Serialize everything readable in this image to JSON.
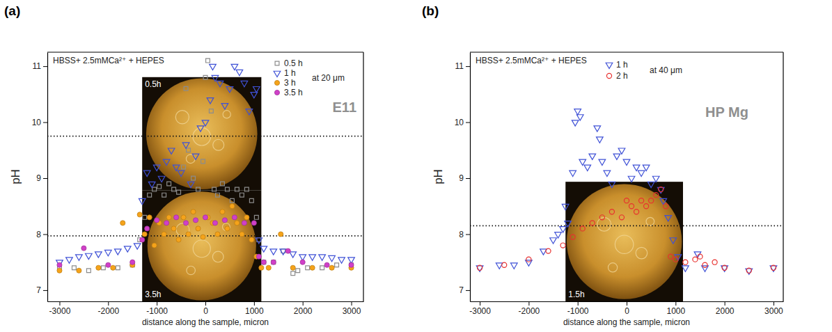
{
  "chart_data": [
    {
      "type": "scatter",
      "panel_label": "(a)",
      "subtitle": "HBSS+ 2.5mMCa²⁺ + HEPES",
      "x_label": "distance along the sample, micron",
      "y_label": "pH",
      "xlim": [
        -3250,
        3250
      ],
      "ylim": [
        6.8,
        11.25
      ],
      "xticks": [
        -3000,
        -2000,
        -1000,
        0,
        1000,
        2000,
        3000
      ],
      "yticks": [
        7,
        8,
        9,
        10,
        11
      ],
      "reference_lines": [
        9.75,
        7.97
      ],
      "annotations": [
        "at 20 μm",
        "E11"
      ],
      "inset_labels": [
        "0.5h",
        "3.5h"
      ],
      "legend": "upper right",
      "series": [
        {
          "name": "0.5 h",
          "color": "#8c8c8c",
          "marker": "square-open",
          "x": [
            -3000,
            -2700,
            -2400,
            -2100,
            -1800,
            -1500,
            -1350,
            -1250,
            -1150,
            -1050,
            -950,
            -850,
            -750,
            -650,
            -550,
            -450,
            -400,
            -350,
            -250,
            -150,
            -50,
            0,
            50,
            120,
            180,
            250,
            350,
            450,
            550,
            650,
            750,
            850,
            950,
            1050,
            1100,
            1200,
            1400,
            1600,
            1800,
            1900,
            2100,
            2400,
            2700,
            3000
          ],
          "values": [
            7.4,
            7.4,
            7.35,
            7.4,
            7.4,
            7.45,
            7.9,
            8.3,
            8.7,
            8.8,
            8.85,
            8.7,
            8.9,
            8.8,
            8.75,
            9.2,
            10.6,
            9.5,
            9.0,
            8.8,
            9.3,
            10.8,
            11.1,
            10.2,
            8.8,
            8.7,
            8.9,
            8.8,
            8.6,
            8.8,
            8.7,
            8.8,
            8.6,
            8.3,
            7.9,
            7.5,
            7.5,
            7.7,
            7.3,
            7.35,
            7.4,
            7.4,
            7.45,
            7.45
          ]
        },
        {
          "name": "1 h",
          "color": "#3f51d6",
          "marker": "triangle-down-open",
          "x": [
            -3000,
            -2800,
            -2600,
            -2400,
            -2200,
            -2000,
            -1800,
            -1600,
            -1400,
            -1300,
            -1200,
            -1100,
            -1000,
            -900,
            -800,
            -700,
            -600,
            -500,
            -400,
            -300,
            -200,
            -100,
            0,
            100,
            150,
            200,
            300,
            400,
            500,
            600,
            700,
            800,
            900,
            1000,
            1050,
            1100,
            1200,
            1400,
            1600,
            1800,
            2000,
            2200,
            2400,
            2600,
            2800,
            3000
          ],
          "values": [
            7.5,
            7.55,
            7.6,
            7.62,
            7.65,
            7.68,
            7.7,
            7.75,
            7.8,
            8.6,
            9.1,
            8.9,
            9.2,
            9.0,
            9.3,
            9.5,
            9.2,
            9.1,
            9.6,
            8.9,
            9.4,
            9.9,
            10.0,
            10.4,
            11.0,
            10.8,
            10.7,
            10.3,
            10.6,
            11.0,
            10.9,
            10.7,
            10.2,
            10.5,
            10.6,
            7.9,
            7.75,
            7.7,
            7.7,
            7.65,
            7.6,
            7.6,
            7.6,
            7.58,
            7.55,
            7.55
          ]
        },
        {
          "name": "3 h",
          "color": "#f5a31a",
          "marker": "circle",
          "x": [
            -3000,
            -2600,
            -2200,
            -1900,
            -1700,
            -1500,
            -1350,
            -1250,
            -1150,
            -1050,
            -950,
            -850,
            -750,
            -650,
            -550,
            -450,
            -350,
            -250,
            -150,
            -50,
            50,
            150,
            250,
            350,
            450,
            550,
            650,
            750,
            850,
            950,
            1050,
            1150,
            1300,
            1550,
            1800,
            2200,
            2600,
            3000
          ],
          "values": [
            7.35,
            7.35,
            7.4,
            7.4,
            8.2,
            7.45,
            8.35,
            8.0,
            8.3,
            7.8,
            8.2,
            8.0,
            8.3,
            8.1,
            7.9,
            8.3,
            8.0,
            8.4,
            8.1,
            7.95,
            8.3,
            8.2,
            8.0,
            8.4,
            8.1,
            8.5,
            8.2,
            8.0,
            8.3,
            7.9,
            7.6,
            7.4,
            7.4,
            8.0,
            7.4,
            7.4,
            7.4,
            7.4
          ]
        },
        {
          "name": "3.5 h",
          "color": "#d040c8",
          "marker": "circle",
          "x": [
            -3000,
            -2500,
            -2000,
            -1500,
            -1300,
            -1200,
            -1000,
            -800,
            -600,
            -400,
            -200,
            0,
            200,
            400,
            600,
            800,
            1000,
            1100,
            1200,
            1400,
            1700,
            2000,
            2500,
            3000
          ],
          "values": [
            7.45,
            7.75,
            7.45,
            7.5,
            7.9,
            8.1,
            8.25,
            8.2,
            8.3,
            8.2,
            8.25,
            8.3,
            8.2,
            8.25,
            8.3,
            8.2,
            8.2,
            7.6,
            7.5,
            7.5,
            7.7,
            7.5,
            7.45,
            7.45
          ]
        }
      ]
    },
    {
      "type": "scatter",
      "panel_label": "(b)",
      "subtitle": "HBSS+ 2.5mMCa²⁺ + HEPES",
      "x_label": "distance along the sample, micron",
      "y_label": "pH",
      "xlim": [
        -3200,
        3200
      ],
      "ylim": [
        6.8,
        11.25
      ],
      "xticks": [
        -3000,
        -2000,
        -1000,
        0,
        1000,
        2000,
        3000
      ],
      "yticks": [
        7,
        8,
        9,
        10,
        11
      ],
      "reference_lines": [
        8.15
      ],
      "annotations": [
        "at 40 μm",
        "HP Mg"
      ],
      "inset_labels": [
        "1.5h"
      ],
      "legend": "upper right",
      "series": [
        {
          "name": "1 h",
          "color": "#3f51d6",
          "marker": "triangle-down-open",
          "x": [
            -3000,
            -2600,
            -2300,
            -2000,
            -1700,
            -1500,
            -1400,
            -1300,
            -1250,
            -1200,
            -1100,
            -1050,
            -1000,
            -950,
            -900,
            -800,
            -700,
            -600,
            -550,
            -500,
            -400,
            -300,
            -200,
            -100,
            0,
            100,
            200,
            300,
            400,
            500,
            600,
            700,
            750,
            850,
            950,
            1050,
            1200,
            1450,
            1600,
            2000,
            2500,
            3000
          ],
          "values": [
            7.4,
            7.45,
            7.45,
            7.5,
            7.7,
            7.9,
            8.0,
            8.1,
            8.5,
            8.2,
            9.1,
            10.0,
            10.2,
            10.1,
            9.3,
            9.2,
            9.4,
            9.9,
            9.7,
            9.3,
            9.1,
            8.9,
            9.4,
            9.5,
            9.3,
            9.0,
            9.2,
            9.1,
            9.2,
            8.9,
            9.0,
            8.8,
            8.6,
            8.3,
            7.9,
            7.6,
            7.4,
            7.65,
            7.4,
            7.4,
            7.35,
            7.4
          ]
        },
        {
          "name": "2 h",
          "color": "#e8312f",
          "marker": "circle-open",
          "x": [
            -3000,
            -2500,
            -2000,
            -1600,
            -1300,
            -1100,
            -900,
            -700,
            -500,
            -300,
            -100,
            0,
            100,
            200,
            300,
            400,
            500,
            600,
            700,
            800,
            900,
            1000,
            1200,
            1400,
            1500,
            1600,
            1800,
            2000,
            2500,
            3000
          ],
          "values": [
            7.4,
            7.45,
            7.55,
            7.7,
            7.8,
            7.95,
            8.1,
            8.2,
            8.3,
            8.4,
            8.3,
            8.6,
            8.5,
            8.4,
            8.6,
            8.5,
            8.6,
            8.7,
            8.8,
            8.5,
            7.6,
            7.55,
            7.5,
            7.55,
            7.6,
            7.45,
            7.5,
            7.4,
            7.35,
            7.4
          ]
        }
      ]
    }
  ]
}
